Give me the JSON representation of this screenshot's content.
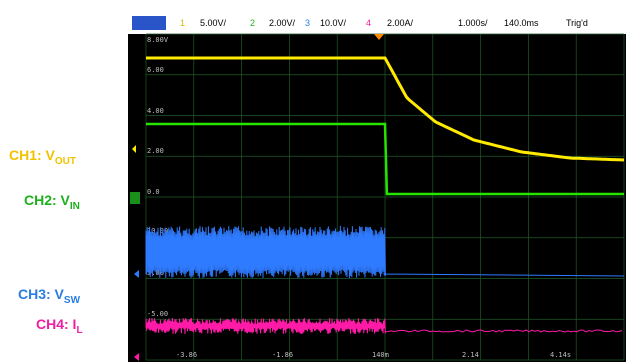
{
  "labels": [
    {
      "name": "CH1",
      "text": "CH1: V",
      "sub": "OUT",
      "color": "#f2c200"
    },
    {
      "name": "CH2",
      "text": "CH2: V",
      "sub": "IN",
      "color": "#1cb01c"
    },
    {
      "name": "CH3",
      "text": "CH3: V",
      "sub": "SW",
      "color": "#2a7de1"
    },
    {
      "name": "CH4",
      "text": "CH4: I",
      "sub": "L",
      "color": "#ee1fa0"
    }
  ],
  "header": {
    "ch1_num": "1",
    "ch1_scale": "5.00V/",
    "ch2_num": "2",
    "ch2_scale": "2.00V/",
    "ch3_num": "3",
    "ch3_scale": "10.0V/",
    "ch4_num": "4",
    "ch4_scale": "2.00A/",
    "timebase": "1.000s/",
    "delay": "140.0ms",
    "trigger": "Trig'd"
  },
  "colors": {
    "ch1": "#ffea00",
    "ch2": "#27e400",
    "ch3": "#2f7bff",
    "ch4": "#ff1aa8",
    "grid": "#1f5a2a",
    "header_bar": "#ffffff",
    "marker": "#2a55c8"
  },
  "chart_data": {
    "type": "line",
    "title": "",
    "xlabel": "",
    "ylabel": "",
    "grid": true,
    "x_tick_labels": [
      "-3.86",
      "-1.86",
      "140m",
      "2.14",
      "4.14s"
    ],
    "y_tick_labels": [
      "8.00V",
      "6.00",
      "4.00",
      "2.00",
      "0.0",
      "10.00",
      "5.00",
      "-5.00"
    ],
    "series": [
      {
        "name": "CH1",
        "description": "holds at 6.8 V, then decays exponentially to about 1.7 V",
        "x_s": [
          -4.86,
          0.14,
          0.6,
          1.2,
          2.0,
          3.0,
          4.0,
          5.14
        ],
        "y_v": [
          6.8,
          6.8,
          4.8,
          3.6,
          2.7,
          2.1,
          1.8,
          1.7
        ]
      },
      {
        "name": "CH2",
        "description": "holds at 3.5 V, drops to 0 V at trigger",
        "x_s": [
          -4.86,
          0.14,
          0.18,
          5.14
        ],
        "y_v": [
          3.5,
          3.5,
          0.0,
          0.0
        ]
      },
      {
        "name": "CH3",
        "description": "switching noise band, then flat after trigger"
      },
      {
        "name": "CH4",
        "description": "noisy ripple band, then flat after trigger"
      }
    ]
  }
}
